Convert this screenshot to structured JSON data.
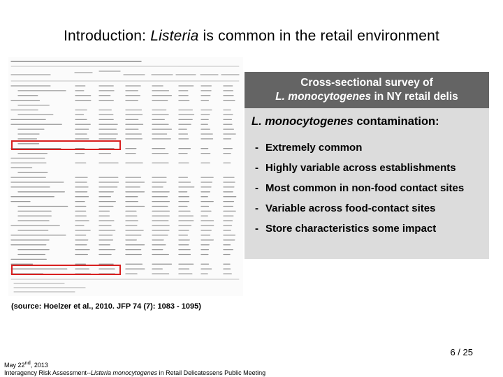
{
  "title": {
    "prefix": "Introduction: ",
    "italic": "Listeria",
    "suffix": " is common in the retail environment"
  },
  "panel": {
    "header_line1": "Cross-sectional survey of",
    "header_line2_italic": "L. monocytogenes",
    "header_line2_suffix": " in NY retail delis",
    "subhead_italic": "L. monocytogenes",
    "subhead_suffix": " contamination:",
    "bullet_marker": "-",
    "bullets": [
      "Extremely common",
      "Highly variable across establishments",
      "Most common in non-food contact sites",
      "Variable across food-contact sites",
      "Store characteristics some impact"
    ]
  },
  "source": "(source: Hoelzer et al., 2010. JFP 74 (7): 1083 - 1095)",
  "page_number": "6 / 25",
  "footer": {
    "date": "May 22",
    "date_sup": "nd",
    "date_year": ", 2013",
    "line2_prefix": "Interagency Risk Assessment--",
    "line2_italic": "Listeria monocytogenes",
    "line2_suffix": " in Retail Delicatessens Public Meeting"
  },
  "colors": {
    "header_bg": "#646464",
    "panel_bg": "#dcdcdc",
    "highlight_box": "#d92020"
  }
}
